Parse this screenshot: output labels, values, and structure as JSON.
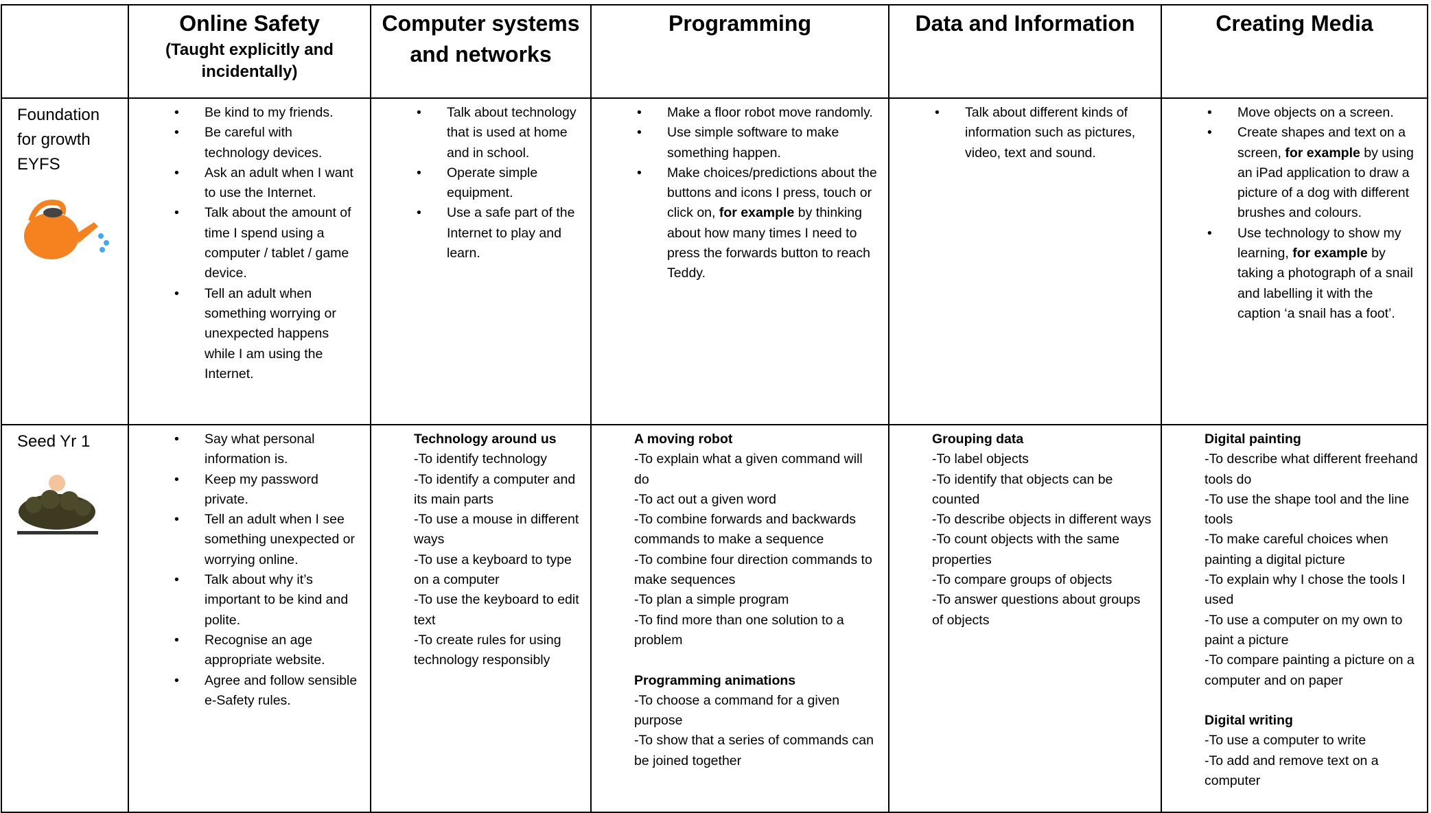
{
  "header": {
    "columns": [
      {
        "title": "Online Safety",
        "subtitle": "(Taught explicitly and incidentally)"
      },
      {
        "title": "Computer systems and networks"
      },
      {
        "title": "Programming"
      },
      {
        "title": "Data and Information"
      },
      {
        "title": "Creating Media"
      }
    ]
  },
  "rows": [
    {
      "label": [
        "Foundation",
        "for growth",
        "EYFS"
      ],
      "cells": [
        {
          "bullets": [
            "Be kind to my friends.",
            "Be careful with technology devices.",
            "Ask an adult when I want to use the Internet.",
            "Talk about the amount of time I spend using a computer / tablet / game device.",
            "Tell an adult when something worrying or unexpected happens while I am using the Internet."
          ]
        },
        {
          "bullets": [
            "Talk about technology that is used at home and in school.",
            "Operate simple equipment.",
            "Use a safe part of the Internet to play and learn."
          ]
        },
        {
          "bullets": [
            "Make a floor robot move randomly.",
            "Use simple software to make something happen.",
            {
              "before": "Make choices/predictions about the buttons and icons I press, touch or click on, ",
              "bold": "for example",
              "after": " by thinking about how many times I need to press the forwards button to reach Teddy."
            }
          ]
        },
        {
          "bullets": [
            "Talk about different kinds of information such as pictures, video, text and sound."
          ]
        },
        {
          "bullets": [
            "Move objects on a screen.",
            {
              "before": "Create shapes and text on a screen, ",
              "bold": "for example",
              "after": " by using an iPad application to draw a picture of a dog with different brushes and colours."
            },
            {
              "before": "Use technology to show my learning, ",
              "bold": "for example",
              "after": " by taking a photograph of a snail and labelling it with the caption ‘a snail has a foot’."
            }
          ]
        }
      ]
    },
    {
      "label": [
        "Seed Yr 1"
      ],
      "cells": [
        {
          "bullets": [
            "Say what personal information is.",
            "Keep my password private.",
            "Tell an adult when I see something unexpected or worrying online.",
            "Talk about why it’s important to be kind and polite.",
            "Recognise an age appropriate website.",
            "Agree and follow sensible e-Safety rules."
          ]
        },
        {
          "sections": [
            {
              "heading": "Technology around us",
              "items": [
                "-To identify technology",
                "-To identify a computer and its main parts",
                "-To use a mouse in different ways",
                "-To use a keyboard to type on a computer",
                "-To use the keyboard to edit text",
                "-To create rules for using technology responsibly"
              ]
            }
          ]
        },
        {
          "sections": [
            {
              "heading": "A moving robot",
              "items": [
                "-To explain what a given command will do",
                "-To act out a given word",
                "-To combine forwards and backwards commands to make a sequence",
                "-To combine four direction commands to make sequences",
                "-To plan a simple program",
                "-To find more than one solution to a problem"
              ]
            },
            {
              "heading": "Programming animations",
              "items": [
                "-To choose a command for a given purpose",
                "-To show that a series of commands can be joined together"
              ]
            }
          ]
        },
        {
          "sections": [
            {
              "heading": "Grouping data",
              "items": [
                "-To label objects",
                "-To identify that objects can be counted",
                "-To describe objects in different ways",
                "-To count objects with the same properties",
                "-To compare groups of objects",
                "-To answer questions about groups of objects"
              ]
            }
          ]
        },
        {
          "sections": [
            {
              "heading": "Digital painting",
              "items": [
                "-To describe what different freehand tools do",
                "-To use the shape tool and the line tools",
                "-To make careful choices when painting a digital picture",
                "-To explain why I chose the tools I used",
                "-To use a computer on my own to paint a picture",
                "-To compare painting a picture on a computer and on paper"
              ]
            },
            {
              "heading": "Digital writing",
              "items": [
                "-To use a computer to write",
                "-To add and remove text on a computer"
              ]
            }
          ]
        }
      ]
    }
  ]
}
